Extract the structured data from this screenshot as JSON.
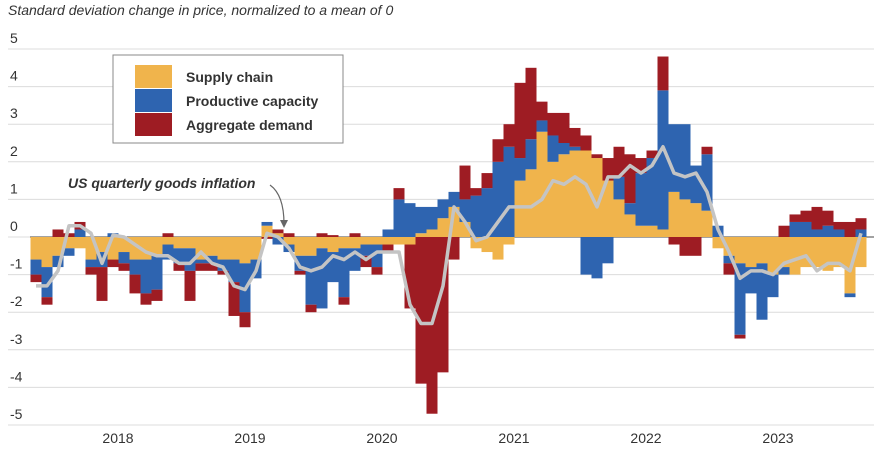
{
  "chart_data": {
    "type": "bar",
    "title": "Standard deviation change in price, normalized to a mean of 0",
    "categories": [
      null,
      null,
      null,
      null,
      null,
      null,
      null,
      "2018",
      null,
      null,
      null,
      null,
      null,
      null,
      null,
      null,
      null,
      null,
      null,
      "2019",
      null,
      null,
      null,
      null,
      null,
      null,
      null,
      null,
      null,
      null,
      null,
      "2020",
      null,
      null,
      null,
      null,
      null,
      null,
      null,
      null,
      null,
      null,
      null,
      "2021",
      null,
      null,
      null,
      null,
      null,
      null,
      null,
      null,
      null,
      null,
      null,
      "2022",
      null,
      null,
      null,
      null,
      null,
      null,
      null,
      null,
      null,
      null,
      null,
      "2023",
      null,
      null,
      null,
      null,
      null,
      null,
      null,
      null
    ],
    "series": [
      {
        "name": "Supply chain",
        "color": "#f0b44c",
        "values": [
          -0.6,
          -0.8,
          -0.5,
          -0.3,
          -0.3,
          -0.6,
          -0.4,
          -0.6,
          -0.4,
          -0.6,
          -0.6,
          -0.5,
          -0.2,
          -0.3,
          -0.3,
          -0.6,
          -0.5,
          -0.6,
          -0.6,
          -0.7,
          -0.6,
          0.3,
          0.1,
          -0.2,
          -0.5,
          -0.5,
          -0.3,
          -0.4,
          -0.3,
          -0.3,
          -0.2,
          -0.2,
          -0.2,
          -0.2,
          -0.2,
          0.1,
          0.2,
          0.5,
          0.8,
          0.4,
          -0.3,
          -0.4,
          -0.6,
          -0.2,
          1.5,
          1.8,
          2.8,
          2.0,
          2.2,
          2.3,
          2.3,
          2.1,
          1.5,
          1.0,
          0.6,
          0.3,
          0.3,
          0.2,
          1.2,
          1.0,
          0.9,
          0.7,
          -0.3,
          -0.5,
          -0.7,
          -0.8,
          -0.7,
          -1.0,
          -0.8,
          -1.0,
          -0.8,
          -0.8,
          -0.9,
          -0.8,
          -1.5,
          -0.8
        ]
      },
      {
        "name": "Productive capacity",
        "color": "#2e64b0",
        "values": [
          -0.4,
          -0.8,
          -0.3,
          -0.2,
          0.2,
          -0.2,
          -0.4,
          0.1,
          -0.3,
          -0.4,
          -0.9,
          -0.9,
          -0.4,
          -0.4,
          -0.6,
          -0.1,
          -0.2,
          -0.3,
          -0.6,
          -1.3,
          -0.5,
          0.1,
          -0.2,
          -0.2,
          -0.4,
          -1.3,
          -1.6,
          -0.8,
          -1.3,
          -0.6,
          -0.3,
          -0.6,
          0.2,
          1.0,
          0.9,
          0.7,
          0.6,
          0.5,
          0.4,
          0.6,
          1.1,
          1.3,
          2.0,
          2.4,
          0.6,
          0.8,
          0.3,
          0.7,
          0.3,
          0.1,
          -1.0,
          -1.1,
          -0.7,
          0.6,
          0.3,
          1.4,
          1.8,
          3.7,
          1.8,
          2.0,
          1.0,
          1.5,
          0.3,
          -0.2,
          -1.9,
          -0.7,
          -1.5,
          -0.6,
          -0.2,
          0.4,
          0.4,
          0.2,
          0.3,
          0.2,
          -0.1,
          0.2
        ]
      },
      {
        "name": "Aggregate demand",
        "color": "#9e1c23",
        "values": [
          -0.2,
          -0.2,
          0.2,
          0.1,
          0.2,
          -0.2,
          -0.9,
          -0.2,
          -0.2,
          -0.5,
          -0.3,
          -0.3,
          0.1,
          -0.2,
          -0.8,
          -0.2,
          -0.2,
          -0.1,
          -0.9,
          -0.4,
          0.0,
          -0.05,
          0.1,
          0.1,
          -0.1,
          -0.2,
          0.1,
          0.05,
          -0.2,
          0.1,
          -0.3,
          -0.2,
          -0.2,
          0.3,
          -1.7,
          -3.9,
          -4.7,
          -3.6,
          -0.6,
          0.9,
          0.2,
          0.4,
          0.6,
          0.6,
          2.0,
          1.9,
          0.5,
          0.6,
          0.8,
          0.5,
          0.4,
          0.1,
          0.6,
          0.8,
          1.3,
          0.4,
          0.2,
          0.9,
          -0.2,
          -0.5,
          -0.5,
          0.2,
          0.0,
          -0.3,
          -0.1,
          0.0,
          0.0,
          0.0,
          0.3,
          0.2,
          0.3,
          0.6,
          0.4,
          0.2,
          0.4,
          0.3
        ]
      }
    ],
    "line": {
      "label": "US quarterly goods inflation",
      "color": "#c4c4c4",
      "values": [
        -1.3,
        -1.3,
        -0.9,
        0.3,
        0.3,
        0.1,
        -0.7,
        0.05,
        0.0,
        -0.2,
        -0.4,
        -0.5,
        -0.5,
        -0.7,
        -0.7,
        -0.4,
        -0.7,
        -0.8,
        -1.3,
        -1.4,
        -0.9,
        0.1,
        0.0,
        -0.3,
        -0.8,
        -0.9,
        -0.8,
        -0.5,
        -0.6,
        -0.4,
        -0.6,
        -0.4,
        -0.4,
        -0.4,
        -1.8,
        -2.3,
        -2.3,
        -1.3,
        0.8,
        0.4,
        -0.1,
        0.0,
        0.4,
        0.8,
        0.8,
        0.8,
        1.0,
        1.5,
        1.4,
        1.6,
        1.4,
        0.8,
        1.6,
        1.6,
        1.9,
        1.7,
        1.9,
        2.4,
        1.7,
        1.6,
        1.7,
        1.2,
        0.2,
        -0.4,
        -1.1,
        -0.9,
        -0.9,
        -1.0,
        -0.7,
        -0.6,
        -0.5,
        -0.9,
        -0.7,
        -0.7,
        -0.9,
        0.1
      ]
    },
    "ylim": [
      -5,
      5
    ],
    "yticks": [
      -5,
      -4,
      -3,
      -2,
      -1,
      0,
      1,
      2,
      3,
      4,
      5
    ],
    "grid": true,
    "legend": "upper left"
  }
}
